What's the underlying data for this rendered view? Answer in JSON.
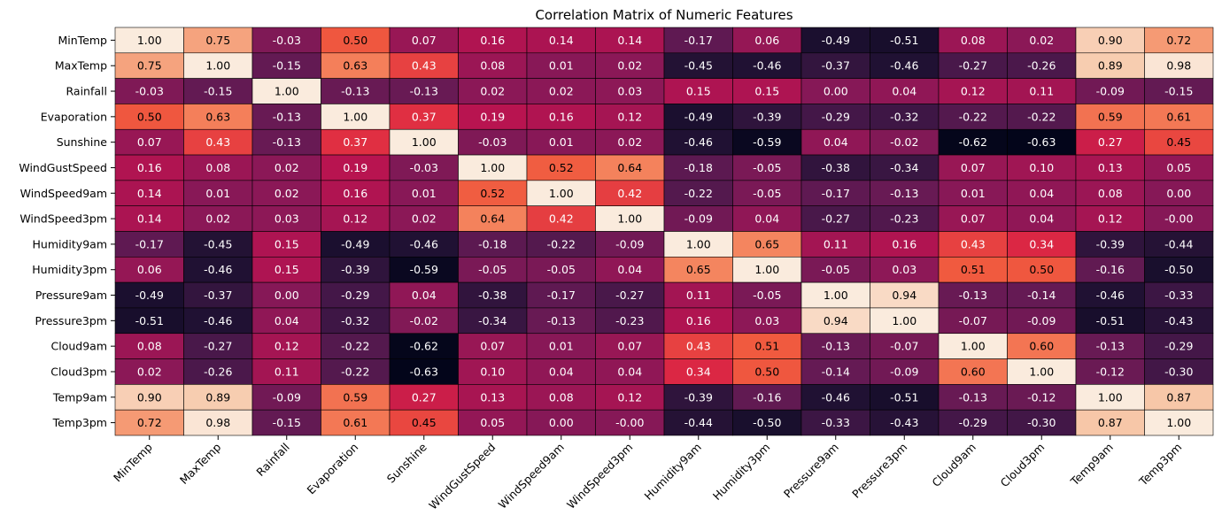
{
  "chart_data": {
    "type": "heatmap",
    "title": "Correlation Matrix of Numeric Features",
    "xlabel": "",
    "ylabel": "",
    "value_range": [
      -0.63,
      1.0
    ],
    "colormap": "rocket",
    "annotations": true,
    "colorbar": false,
    "labels": [
      "MinTemp",
      "MaxTemp",
      "Rainfall",
      "Evaporation",
      "Sunshine",
      "WindGustSpeed",
      "WindSpeed9am",
      "WindSpeed3pm",
      "Humidity9am",
      "Humidity3pm",
      "Pressure9am",
      "Pressure3pm",
      "Cloud9am",
      "Cloud3pm",
      "Temp9am",
      "Temp3pm"
    ],
    "matrix": [
      [
        "1.00",
        "0.75",
        "-0.03",
        "0.50",
        "0.07",
        "0.16",
        "0.14",
        "0.14",
        "-0.17",
        "0.06",
        "-0.49",
        "-0.51",
        "0.08",
        "0.02",
        "0.90",
        "0.72"
      ],
      [
        "0.75",
        "1.00",
        "-0.15",
        "0.63",
        "0.43",
        "0.08",
        "0.01",
        "0.02",
        "-0.45",
        "-0.46",
        "-0.37",
        "-0.46",
        "-0.27",
        "-0.26",
        "0.89",
        "0.98"
      ],
      [
        "-0.03",
        "-0.15",
        "1.00",
        "-0.13",
        "-0.13",
        "0.02",
        "0.02",
        "0.03",
        "0.15",
        "0.15",
        "0.00",
        "0.04",
        "0.12",
        "0.11",
        "-0.09",
        "-0.15"
      ],
      [
        "0.50",
        "0.63",
        "-0.13",
        "1.00",
        "0.37",
        "0.19",
        "0.16",
        "0.12",
        "-0.49",
        "-0.39",
        "-0.29",
        "-0.32",
        "-0.22",
        "-0.22",
        "0.59",
        "0.61"
      ],
      [
        "0.07",
        "0.43",
        "-0.13",
        "0.37",
        "1.00",
        "-0.03",
        "0.01",
        "0.02",
        "-0.46",
        "-0.59",
        "0.04",
        "-0.02",
        "-0.62",
        "-0.63",
        "0.27",
        "0.45"
      ],
      [
        "0.16",
        "0.08",
        "0.02",
        "0.19",
        "-0.03",
        "1.00",
        "0.52",
        "0.64",
        "-0.18",
        "-0.05",
        "-0.38",
        "-0.34",
        "0.07",
        "0.10",
        "0.13",
        "0.05"
      ],
      [
        "0.14",
        "0.01",
        "0.02",
        "0.16",
        "0.01",
        "0.52",
        "1.00",
        "0.42",
        "-0.22",
        "-0.05",
        "-0.17",
        "-0.13",
        "0.01",
        "0.04",
        "0.08",
        "0.00"
      ],
      [
        "0.14",
        "0.02",
        "0.03",
        "0.12",
        "0.02",
        "0.64",
        "0.42",
        "1.00",
        "-0.09",
        "0.04",
        "-0.27",
        "-0.23",
        "0.07",
        "0.04",
        "0.12",
        "-0.00"
      ],
      [
        "-0.17",
        "-0.45",
        "0.15",
        "-0.49",
        "-0.46",
        "-0.18",
        "-0.22",
        "-0.09",
        "1.00",
        "0.65",
        "0.11",
        "0.16",
        "0.43",
        "0.34",
        "-0.39",
        "-0.44"
      ],
      [
        "0.06",
        "-0.46",
        "0.15",
        "-0.39",
        "-0.59",
        "-0.05",
        "-0.05",
        "0.04",
        "0.65",
        "1.00",
        "-0.05",
        "0.03",
        "0.51",
        "0.50",
        "-0.16",
        "-0.50"
      ],
      [
        "-0.49",
        "-0.37",
        "0.00",
        "-0.29",
        "0.04",
        "-0.38",
        "-0.17",
        "-0.27",
        "0.11",
        "-0.05",
        "1.00",
        "0.94",
        "-0.13",
        "-0.14",
        "-0.46",
        "-0.33"
      ],
      [
        "-0.51",
        "-0.46",
        "0.04",
        "-0.32",
        "-0.02",
        "-0.34",
        "-0.13",
        "-0.23",
        "0.16",
        "0.03",
        "0.94",
        "1.00",
        "-0.07",
        "-0.09",
        "-0.51",
        "-0.43"
      ],
      [
        "0.08",
        "-0.27",
        "0.12",
        "-0.22",
        "-0.62",
        "0.07",
        "0.01",
        "0.07",
        "0.43",
        "0.51",
        "-0.13",
        "-0.07",
        "1.00",
        "0.60",
        "-0.13",
        "-0.29"
      ],
      [
        "0.02",
        "-0.26",
        "0.11",
        "-0.22",
        "-0.63",
        "0.10",
        "0.04",
        "0.04",
        "0.34",
        "0.50",
        "-0.14",
        "-0.09",
        "0.60",
        "1.00",
        "-0.12",
        "-0.30"
      ],
      [
        "0.90",
        "0.89",
        "-0.09",
        "0.59",
        "0.27",
        "0.13",
        "0.08",
        "0.12",
        "-0.39",
        "-0.16",
        "-0.46",
        "-0.51",
        "-0.13",
        "-0.12",
        "1.00",
        "0.87"
      ],
      [
        "0.72",
        "0.98",
        "-0.15",
        "0.61",
        "0.45",
        "0.05",
        "0.00",
        "-0.00",
        "-0.44",
        "-0.50",
        "-0.33",
        "-0.43",
        "-0.29",
        "-0.30",
        "0.87",
        "1.00"
      ]
    ]
  }
}
